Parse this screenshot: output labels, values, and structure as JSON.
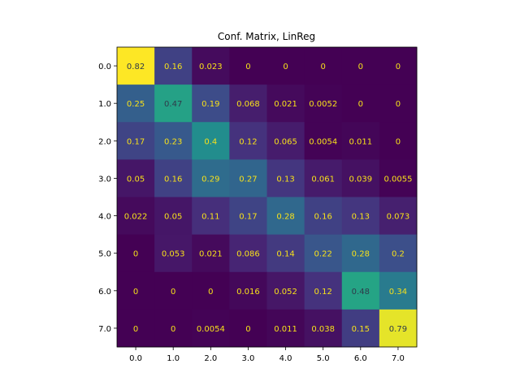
{
  "chart_data": {
    "type": "heatmap",
    "title": "Conf. Matrix, LinReg",
    "xlabel": "",
    "ylabel": "",
    "x_labels": [
      "0.0",
      "1.0",
      "2.0",
      "3.0",
      "4.0",
      "5.0",
      "6.0",
      "7.0"
    ],
    "y_labels": [
      "0.0",
      "1.0",
      "2.0",
      "3.0",
      "4.0",
      "5.0",
      "6.0",
      "7.0"
    ],
    "values": [
      [
        0.82,
        0.16,
        0.023,
        0,
        0,
        0,
        0,
        0
      ],
      [
        0.25,
        0.47,
        0.19,
        0.068,
        0.021,
        0.0052,
        0,
        0
      ],
      [
        0.17,
        0.23,
        0.4,
        0.12,
        0.065,
        0.0054,
        0.011,
        0
      ],
      [
        0.05,
        0.16,
        0.29,
        0.27,
        0.13,
        0.061,
        0.039,
        0.0055
      ],
      [
        0.022,
        0.05,
        0.11,
        0.17,
        0.28,
        0.16,
        0.13,
        0.073
      ],
      [
        0,
        0.053,
        0.021,
        0.086,
        0.14,
        0.22,
        0.28,
        0.2
      ],
      [
        0,
        0,
        0,
        0.016,
        0.052,
        0.12,
        0.48,
        0.34
      ],
      [
        0,
        0,
        0.0054,
        0,
        0.011,
        0.038,
        0.15,
        0.79
      ]
    ],
    "value_labels": [
      [
        "0.82",
        "0.16",
        "0.023",
        "0",
        "0",
        "0",
        "0",
        "0"
      ],
      [
        "0.25",
        "0.47",
        "0.19",
        "0.068",
        "0.021",
        "0.0052",
        "0",
        "0"
      ],
      [
        "0.17",
        "0.23",
        "0.4",
        "0.12",
        "0.065",
        "0.0054",
        "0.011",
        "0"
      ],
      [
        "0.05",
        "0.16",
        "0.29",
        "0.27",
        "0.13",
        "0.061",
        "0.039",
        "0.0055"
      ],
      [
        "0.022",
        "0.05",
        "0.11",
        "0.17",
        "0.28",
        "0.16",
        "0.13",
        "0.073"
      ],
      [
        "0",
        "0.053",
        "0.021",
        "0.086",
        "0.14",
        "0.22",
        "0.28",
        "0.2"
      ],
      [
        "0",
        "0",
        "0",
        "0.016",
        "0.052",
        "0.12",
        "0.48",
        "0.34"
      ],
      [
        "0",
        "0",
        "0.0054",
        "0",
        "0.011",
        "0.038",
        "0.15",
        "0.79"
      ]
    ],
    "colormap": "viridis",
    "color_range": [
      0,
      0.82
    ],
    "text_colors": {
      "on_dark": "#f7e11a",
      "on_light": "#2f3a4a"
    },
    "grid": false,
    "legend": "none"
  }
}
